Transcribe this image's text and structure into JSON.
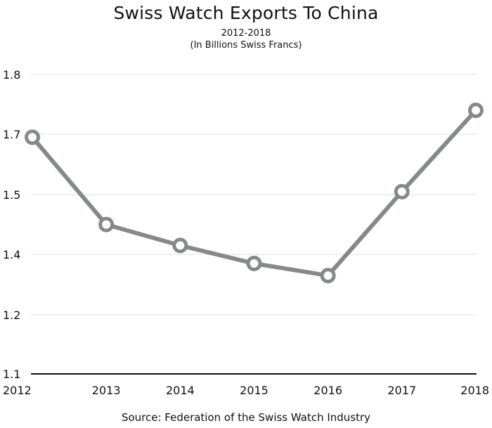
{
  "chart_data": {
    "type": "line",
    "title": "Swiss Watch Exports To China",
    "subtitle_lines": [
      "2012-2018",
      "(In Billions Swiss Francs)"
    ],
    "source": "Source: Federation of the Swiss Watch Industry",
    "x": [
      "2012",
      "2013",
      "2014",
      "2015",
      "2016",
      "2017",
      "2018"
    ],
    "values": [
      1.69,
      1.45,
      1.415,
      1.37,
      1.33,
      1.51,
      1.74
    ],
    "yticks": [
      1.1,
      1.2,
      1.4,
      1.5,
      1.7,
      1.8
    ],
    "ytick_labels": [
      "1.1",
      "1.2",
      "1.4",
      "1.5",
      "1.7",
      "1.8"
    ],
    "ylim": [
      1.1,
      1.8
    ],
    "grid": true,
    "line_color": "#858a86",
    "marker_fill": "#ffffff"
  }
}
